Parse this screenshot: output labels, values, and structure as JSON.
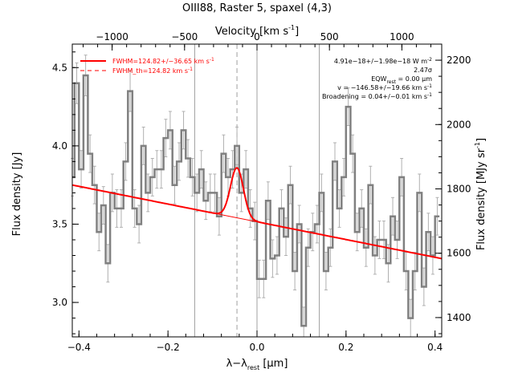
{
  "chart_data": {
    "type": "line",
    "title": "OIII88, Raster 5, spaxel (4,3)",
    "xlabel": "λ−λ",
    "xlabel_sub": "rest",
    "xlabel_unit": "[μm]",
    "ylabel": "Flux density [Jy]",
    "y2label": "Flux density [MJy sr",
    "y2label_sup": "-1",
    "x2label": "Velocity [km s",
    "x2label_sup": "-1",
    "xlim": [
      -0.415,
      0.415
    ],
    "ylim": [
      2.78,
      4.65
    ],
    "y2lim": [
      1340,
      2250
    ],
    "x2lim": [
      -1275,
      1275
    ],
    "xticks": [
      -0.4,
      -0.2,
      0.0,
      0.2,
      0.4
    ],
    "xtick_labels": [
      "−0.4",
      "−0.2",
      "0.0",
      "0.2",
      "0.4"
    ],
    "yticks": [
      3.0,
      3.5,
      4.0,
      4.5
    ],
    "ytick_labels": [
      "3.0",
      "3.5",
      "4.0",
      "4.5"
    ],
    "y2ticks": [
      1400,
      1600,
      1800,
      2000,
      2200
    ],
    "y2tick_labels": [
      "1400",
      "1600",
      "1800",
      "2000",
      "2200"
    ],
    "x2ticks": [
      -1000,
      -500,
      0,
      500,
      1000
    ],
    "x2tick_labels": [
      "−1000",
      "−500",
      "0",
      "500",
      "1000"
    ],
    "vlines_solid": [
      -0.14,
      0.0,
      0.14
    ],
    "vline_dashed": -0.045,
    "legend": {
      "placement": "top-left",
      "entries": [
        {
          "label": "FWHM=124.82+/−36.65 km s",
          "sup": "-1",
          "style": "solid",
          "color": "#ff0000"
        },
        {
          "label": "FWHM_th=124.82 km s",
          "sup": "-1",
          "style": "dashed",
          "color": "#ff0000"
        }
      ]
    },
    "annotations": [
      {
        "text": "4.91e−18+/−1.98e−18 W m",
        "sup": "-2"
      },
      {
        "text": "2.47σ",
        "sup": ""
      },
      {
        "text": "EQW",
        "sub": "rest",
        "tail": " = 0.00 μm"
      },
      {
        "text": "v = −146.58+/−19.66 km s",
        "sup": "-1"
      },
      {
        "text": "Broadening = 0.04+/−0.01 km s",
        "sup": "-1"
      }
    ],
    "continuum": {
      "x": [
        -0.415,
        0.415
      ],
      "y": [
        3.75,
        3.28
      ]
    },
    "gaussian": {
      "center": -0.045,
      "peak": 0.32,
      "sigma": 0.0145
    },
    "spectrum": {
      "x": [
        -0.415,
        -0.405,
        -0.395,
        -0.385,
        -0.375,
        -0.365,
        -0.355,
        -0.345,
        -0.335,
        -0.325,
        -0.315,
        -0.305,
        -0.295,
        -0.285,
        -0.275,
        -0.265,
        -0.255,
        -0.245,
        -0.235,
        -0.225,
        -0.215,
        -0.205,
        -0.195,
        -0.185,
        -0.175,
        -0.165,
        -0.155,
        -0.145,
        -0.135,
        -0.125,
        -0.115,
        -0.105,
        -0.095,
        -0.085,
        -0.075,
        -0.065,
        -0.055,
        -0.045,
        -0.035,
        -0.025,
        -0.015,
        -0.005,
        0.005,
        0.015,
        0.025,
        0.035,
        0.045,
        0.055,
        0.065,
        0.075,
        0.085,
        0.095,
        0.105,
        0.115,
        0.125,
        0.135,
        0.145,
        0.155,
        0.165,
        0.175,
        0.185,
        0.195,
        0.205,
        0.215,
        0.225,
        0.235,
        0.245,
        0.255,
        0.265,
        0.275,
        0.285,
        0.295,
        0.305,
        0.315,
        0.325,
        0.335,
        0.345,
        0.355,
        0.365,
        0.375,
        0.385,
        0.395,
        0.405
      ],
      "y": [
        3.8,
        4.4,
        3.85,
        4.45,
        3.95,
        3.75,
        3.45,
        3.62,
        3.25,
        3.7,
        3.6,
        3.6,
        3.9,
        4.35,
        3.6,
        3.5,
        4.0,
        3.7,
        3.8,
        3.85,
        3.85,
        4.05,
        4.1,
        3.75,
        3.9,
        4.1,
        3.92,
        3.8,
        3.7,
        3.85,
        3.65,
        3.7,
        3.7,
        3.55,
        3.95,
        3.8,
        3.85,
        4.0,
        3.7,
        3.85,
        3.6,
        3.52,
        3.15,
        3.15,
        3.65,
        3.28,
        3.3,
        3.6,
        3.42,
        3.75,
        3.2,
        3.5,
        2.85,
        3.35,
        3.45,
        3.5,
        3.7,
        3.2,
        3.35,
        3.9,
        3.6,
        3.8,
        4.25,
        3.95,
        3.45,
        3.6,
        3.35,
        3.75,
        3.3,
        3.4,
        3.4,
        3.25,
        3.55,
        3.4,
        3.8,
        3.2,
        2.9,
        3.2,
        3.7,
        3.1,
        3.45,
        3.3,
        3.55
      ],
      "err": [
        0.12,
        0.13,
        0.12,
        0.13,
        0.12,
        0.12,
        0.12,
        0.12,
        0.12,
        0.12,
        0.12,
        0.12,
        0.12,
        0.13,
        0.12,
        0.12,
        0.12,
        0.12,
        0.12,
        0.12,
        0.12,
        0.12,
        0.12,
        0.12,
        0.12,
        0.12,
        0.12,
        0.12,
        0.12,
        0.12,
        0.12,
        0.12,
        0.12,
        0.12,
        0.12,
        0.12,
        0.12,
        0.12,
        0.12,
        0.12,
        0.12,
        0.12,
        0.12,
        0.12,
        0.12,
        0.12,
        0.12,
        0.12,
        0.12,
        0.12,
        0.12,
        0.12,
        0.12,
        0.12,
        0.12,
        0.12,
        0.12,
        0.12,
        0.12,
        0.12,
        0.12,
        0.12,
        0.12,
        0.12,
        0.12,
        0.12,
        0.12,
        0.12,
        0.12,
        0.12,
        0.12,
        0.12,
        0.12,
        0.12,
        0.12,
        0.12,
        0.12,
        0.12,
        0.12,
        0.12,
        0.12,
        0.12,
        0.12
      ]
    },
    "colors": {
      "spectrum": "#808080",
      "errorbar": "#b0b0b0",
      "fit": "#ff0000",
      "vline": "#a0a0a0",
      "axes": "#000000"
    }
  }
}
